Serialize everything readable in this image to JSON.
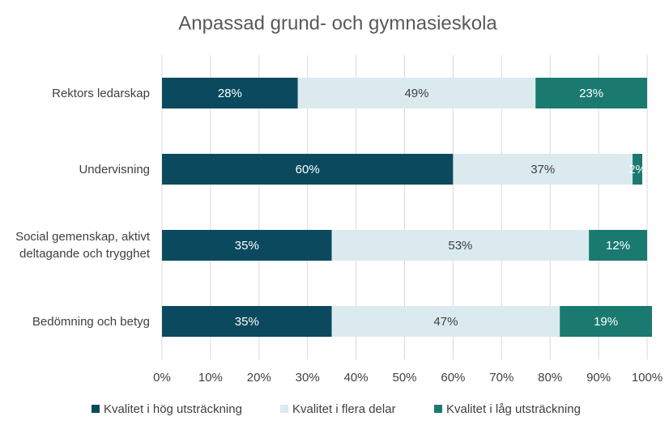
{
  "chart_data": {
    "type": "stacked_barh",
    "title": "Anpassad grund- och gymnasieskola",
    "categories": [
      "Rektors ledarskap",
      "Undervisning",
      "Social gemenskap, aktivt deltagande och trygghet",
      "Bedömning och betyg"
    ],
    "series": [
      {
        "name": "Kvalitet i hög utsträckning",
        "color": "#0b4a5e",
        "label_color": "#ffffff",
        "values": [
          28,
          60,
          35,
          35
        ],
        "value_labels": [
          "28%",
          "60%",
          "35%",
          "35%"
        ]
      },
      {
        "name": "Kvalitet i flera delar",
        "color": "#dbeaee",
        "label_color": "#404040",
        "values": [
          49,
          37,
          53,
          47
        ],
        "value_labels": [
          "49%",
          "37%",
          "53%",
          "47%"
        ]
      },
      {
        "name": "Kvalitet i låg utsträckning",
        "color": "#1a7a70",
        "label_color": "#ffffff",
        "values": [
          23,
          2,
          12,
          19
        ],
        "value_labels": [
          "23%",
          "2%",
          "12%",
          "19%"
        ]
      }
    ],
    "xlim": [
      0,
      100
    ],
    "xticks": [
      {
        "value": 0,
        "label": "0%"
      },
      {
        "value": 10,
        "label": "10%"
      },
      {
        "value": 20,
        "label": "20%"
      },
      {
        "value": 30,
        "label": "30%"
      },
      {
        "value": 40,
        "label": "40%"
      },
      {
        "value": 50,
        "label": "50%"
      },
      {
        "value": 60,
        "label": "60%"
      },
      {
        "value": 70,
        "label": "70%"
      },
      {
        "value": 80,
        "label": "80%"
      },
      {
        "value": 90,
        "label": "90%"
      },
      {
        "value": 100,
        "label": "100%"
      }
    ],
    "grid": true,
    "legend": "bottom"
  }
}
